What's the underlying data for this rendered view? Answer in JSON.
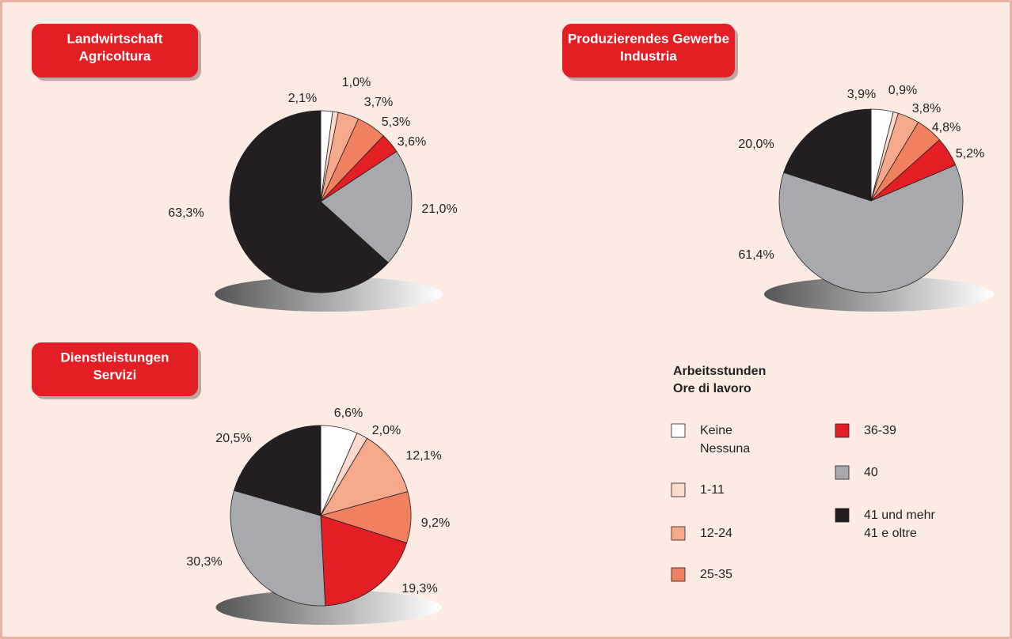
{
  "chart_data": [
    {
      "type": "pie",
      "title": [
        "Landwirtschaft",
        "Agricoltura"
      ],
      "values": [
        2.1,
        1.0,
        3.7,
        5.3,
        3.6,
        21.0,
        63.3
      ],
      "value_labels": [
        "2,1%",
        "1,0%",
        "3,7%",
        "5,3%",
        "3,6%",
        "21,0%",
        "63,3%"
      ]
    },
    {
      "type": "pie",
      "title": [
        "Produzierendes Gewerbe",
        "Industria"
      ],
      "values": [
        3.9,
        0.9,
        3.8,
        4.8,
        5.2,
        61.4,
        20.0
      ],
      "value_labels": [
        "3,9%",
        "0,9%",
        "3,8%",
        "4,8%",
        "5,2%",
        "61,4%",
        "20,0%"
      ]
    },
    {
      "type": "pie",
      "title": [
        "Dienstleistungen",
        "Servizi"
      ],
      "values": [
        6.6,
        2.0,
        12.1,
        9.2,
        19.3,
        30.3,
        20.5
      ],
      "value_labels": [
        "6,6%",
        "2,0%",
        "12,1%",
        "9,2%",
        "19,3%",
        "30,3%",
        "20,5%"
      ]
    }
  ],
  "legend": {
    "title": [
      "Arbeitsstunden",
      "Ore di lavoro"
    ],
    "categories": [
      [
        "Keine",
        "Nessuna"
      ],
      [
        "1-11"
      ],
      [
        "12-24"
      ],
      [
        "25-35"
      ],
      [
        "36-39"
      ],
      [
        "40"
      ],
      [
        "41 und mehr",
        "41 e oltre"
      ]
    ],
    "colors": [
      "#ffffff",
      "#fbd9cc",
      "#f6a98a",
      "#f0805f",
      "#e31e24",
      "#a7a9ac",
      "#231f20"
    ]
  }
}
